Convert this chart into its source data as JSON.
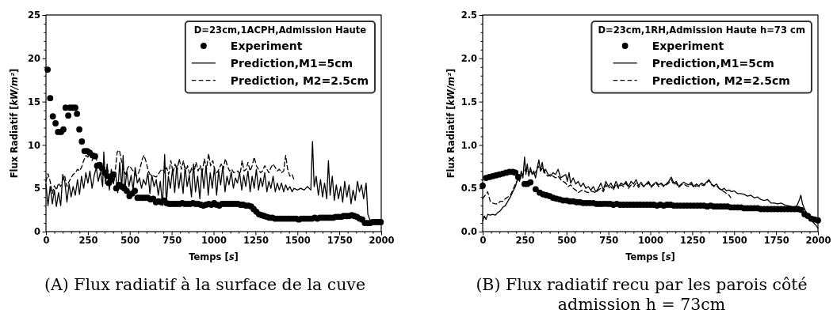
{
  "chart_data": [
    {
      "type": "line",
      "xlabel": "Temps [s]",
      "ylabel": "Flux Radiatif [kW/m²]",
      "legend_title": "D=23cm,1ACPH,Admission Haute",
      "legend": "top right",
      "xlim": [
        0,
        2000
      ],
      "ylim": [
        0,
        25
      ],
      "xticks": [
        0,
        {
          "value": 50,
          "label": null
        },
        {
          "value": 100,
          "label": null
        },
        {
          "value": 150,
          "label": null
        },
        {
          "value": 200,
          "label": null
        },
        250,
        {
          "value": 300,
          "label": null
        },
        {
          "value": 350,
          "label": null
        },
        {
          "value": 400,
          "label": null
        },
        {
          "value": 450,
          "label": null
        },
        500,
        {
          "value": 550,
          "label": null
        },
        {
          "value": 600,
          "label": null
        },
        {
          "value": 650,
          "label": null
        },
        {
          "value": 700,
          "label": null
        },
        750,
        {
          "value": 800,
          "label": null
        },
        {
          "value": 850,
          "label": null
        },
        {
          "value": 900,
          "label": null
        },
        {
          "value": 950,
          "label": null
        },
        1000,
        {
          "value": 1050,
          "label": null
        },
        {
          "value": 1100,
          "label": null
        },
        {
          "value": 1150,
          "label": null
        },
        {
          "value": 1200,
          "label": null
        },
        1250,
        {
          "value": 1300,
          "label": null
        },
        {
          "value": 1350,
          "label": null
        },
        {
          "value": 1400,
          "label": null
        },
        {
          "value": 1450,
          "label": null
        },
        1500,
        {
          "value": 1550,
          "label": null
        },
        {
          "value": 1600,
          "label": null
        },
        {
          "value": 1650,
          "label": null
        },
        {
          "value": 1700,
          "label": null
        },
        1750,
        {
          "value": 1800,
          "label": null
        },
        {
          "value": 1850,
          "label": null
        },
        {
          "value": 1900,
          "label": null
        },
        {
          "value": 1950,
          "label": null
        },
        2000
      ],
      "yticks": [
        0,
        {
          "value": 1,
          "label": null
        },
        {
          "value": 2,
          "label": null
        },
        {
          "value": 3,
          "label": null
        },
        {
          "value": 4,
          "label": null
        },
        5,
        {
          "value": 6,
          "label": null
        },
        {
          "value": 7,
          "label": null
        },
        {
          "value": 8,
          "label": null
        },
        {
          "value": 9,
          "label": null
        },
        10,
        {
          "value": 11,
          "label": null
        },
        {
          "value": 12,
          "label": null
        },
        {
          "value": 13,
          "label": null
        },
        {
          "value": 14,
          "label": null
        },
        15,
        {
          "value": 16,
          "label": null
        },
        {
          "value": 17,
          "label": null
        },
        {
          "value": 18,
          "label": null
        },
        {
          "value": 19,
          "label": null
        },
        20,
        {
          "value": 21,
          "label": null
        },
        {
          "value": 22,
          "label": null
        },
        {
          "value": 23,
          "label": null
        },
        {
          "value": 24,
          "label": null
        },
        25
      ],
      "annotations": [
        "(A) Flux radiatif à la surface de la cuve"
      ],
      "series": [
        {
          "name": "Experiment",
          "type": "scatter",
          "marker": "circle",
          "color": "#000000",
          "x": [
            10,
            25,
            41,
            57,
            72,
            90,
            104,
            117,
            133,
            143,
            159,
            175,
            185,
            199,
            214,
            230,
            246,
            261,
            278,
            293,
            305,
            320,
            335,
            350,
            365,
            375,
            390,
            403,
            419,
            435,
            451,
            467,
            482,
            498,
            514,
            530,
            546,
            561,
            577,
            593,
            608,
            624,
            640,
            656,
            672,
            688,
            703,
            719,
            735,
            750,
            766,
            782,
            798,
            813,
            829,
            845,
            861,
            877,
            892,
            908,
            924,
            940,
            955,
            971,
            987,
            1003,
            1018,
            1034,
            1050,
            1066,
            1082,
            1097,
            1113,
            1129,
            1145,
            1161,
            1176,
            1192,
            1208,
            1224,
            1239,
            1255,
            1271,
            1287,
            1302,
            1318,
            1334,
            1350,
            1366,
            1381,
            1397,
            1413,
            1429,
            1445,
            1460,
            1476,
            1492,
            1508,
            1524,
            1540,
            1555,
            1571,
            1587,
            1603,
            1619,
            1634,
            1650,
            1666,
            1682,
            1697,
            1713,
            1729,
            1745,
            1761,
            1776,
            1792,
            1808,
            1824,
            1839,
            1855,
            1871,
            1887,
            1902,
            1918,
            1934,
            1950,
            1966,
            1981,
            1997
          ],
          "values": [
            18.7,
            15.4,
            13.3,
            12.5,
            11.5,
            11.5,
            11.8,
            14.3,
            13.4,
            14.3,
            14.3,
            14.3,
            13.6,
            11.8,
            10.4,
            9.3,
            9.3,
            9.1,
            8.8,
            8.7,
            7.6,
            7.7,
            7.3,
            6.8,
            6.4,
            5.6,
            6.0,
            6.6,
            5.0,
            5.4,
            5.2,
            5.0,
            4.7,
            4.1,
            4.4,
            4.7,
            3.9,
            3.9,
            3.9,
            3.9,
            3.9,
            3.7,
            3.8,
            3.4,
            3.5,
            3.4,
            3.6,
            3.3,
            3.2,
            3.2,
            3.2,
            3.2,
            3.2,
            3.3,
            3.2,
            3.2,
            3.2,
            3.3,
            3.2,
            3.2,
            3.1,
            3.0,
            3.1,
            3.2,
            3.1,
            3.3,
            3.1,
            3.0,
            3.2,
            3.2,
            3.2,
            3.2,
            3.2,
            3.2,
            3.2,
            3.1,
            3.1,
            3.0,
            3.0,
            2.9,
            2.6,
            2.3,
            2.0,
            1.9,
            1.8,
            1.7,
            1.6,
            1.6,
            1.5,
            1.5,
            1.5,
            1.5,
            1.5,
            1.5,
            1.5,
            1.5,
            1.5,
            1.4,
            1.5,
            1.5,
            1.5,
            1.5,
            1.5,
            1.6,
            1.5,
            1.6,
            1.6,
            1.6,
            1.6,
            1.6,
            1.6,
            1.7,
            1.7,
            1.7,
            1.8,
            1.8,
            1.8,
            1.9,
            1.8,
            1.7,
            1.5,
            1.4,
            1.0,
            1.0,
            1.0,
            1.1,
            1.1,
            1.1,
            1.1
          ]
        },
        {
          "name": "Prediction,M1=5cm",
          "line_style": "solid",
          "color": "#000000",
          "x": [
            0,
            12,
            25,
            38,
            50,
            62,
            75,
            88,
            100,
            112,
            125,
            138,
            150,
            162,
            175,
            188,
            200,
            212,
            225,
            238,
            250,
            262,
            275,
            288,
            300,
            312,
            325,
            338,
            345,
            355,
            365,
            378,
            390,
            402,
            415,
            428,
            440,
            452,
            460,
            470,
            482,
            495,
            508,
            520,
            532,
            545,
            558,
            570,
            582,
            595,
            608,
            620,
            632,
            645,
            658,
            670,
            682,
            695,
            708,
            718,
            730,
            742,
            755,
            768,
            780,
            792,
            805,
            818,
            830,
            842,
            855,
            868,
            880,
            892,
            905,
            918,
            930,
            942,
            955,
            968,
            980,
            992,
            1005,
            1018,
            1030,
            1042,
            1055,
            1068,
            1080,
            1092,
            1105,
            1118,
            1130,
            1142,
            1155,
            1168,
            1180,
            1192,
            1205,
            1218,
            1230,
            1242,
            1255,
            1268,
            1280,
            1292,
            1305,
            1318,
            1330,
            1342,
            1355,
            1368,
            1380,
            1392,
            1405,
            1418,
            1430,
            1442,
            1455,
            1468,
            1480,
            1500,
            1520,
            1540,
            1560,
            1580,
            1590,
            1600,
            1612,
            1625,
            1638,
            1650,
            1662,
            1675,
            1685,
            1695,
            1708,
            1720,
            1732,
            1745,
            1758,
            1770,
            1782,
            1795,
            1808,
            1820,
            1832,
            1845,
            1858,
            1870,
            1882,
            1895,
            1910,
            1920,
            1932,
            1945
          ],
          "values": [
            5.5,
            3.0,
            5.2,
            3.2,
            4.8,
            2.9,
            4.5,
            3.0,
            6.6,
            5.8,
            3.4,
            5.5,
            4.0,
            5.2,
            4.2,
            6.0,
            4.3,
            6.4,
            5.0,
            6.8,
            5.6,
            7.0,
            5.0,
            6.5,
            7.4,
            5.8,
            6.9,
            5.2,
            9.2,
            5.5,
            7.8,
            4.8,
            7.2,
            5.5,
            6.8,
            4.5,
            8.0,
            5.0,
            8.8,
            4.6,
            7.0,
            5.2,
            6.5,
            4.8,
            7.4,
            5.6,
            6.2,
            5.0,
            6.0,
            5.4,
            6.8,
            4.4,
            6.5,
            5.2,
            6.0,
            4.2,
            5.8,
            3.0,
            8.9,
            3.2,
            6.4,
            5.0,
            7.2,
            4.5,
            7.6,
            5.0,
            6.8,
            4.4,
            7.5,
            5.2,
            6.5,
            4.0,
            7.8,
            4.6,
            6.4,
            3.8,
            7.2,
            5.0,
            7.6,
            4.2,
            6.8,
            5.0,
            7.4,
            4.2,
            7.0,
            5.4,
            7.6,
            4.6,
            6.4,
            5.4,
            6.9,
            5.0,
            6.2,
            5.6,
            6.8,
            4.8,
            6.5,
            5.2,
            7.0,
            4.6,
            6.4,
            5.0,
            7.2,
            4.8,
            6.2,
            5.2,
            6.8,
            4.6,
            5.8,
            5.0,
            6.4,
            4.6,
            5.6,
            4.8,
            5.6,
            4.6,
            5.4,
            4.8,
            5.2,
            4.6,
            5.0,
            4.8,
            5.0,
            4.8,
            5.2,
            4.8,
            10.4,
            5.2,
            6.4,
            4.2,
            6.0,
            4.0,
            5.6,
            3.8,
            8.2,
            4.2,
            6.4,
            3.6,
            5.4,
            3.8,
            5.2,
            3.4,
            5.8,
            4.0,
            5.4,
            3.2,
            4.8,
            3.6,
            5.8,
            4.6,
            5.4,
            3.8,
            5.6,
            2.0,
            1.4,
            1.0
          ]
        },
        {
          "name": "Prediction, M2=2.5cm",
          "line_style": "dashed",
          "color": "#000000",
          "x": [
            0,
            12,
            25,
            38,
            50,
            62,
            75,
            88,
            100,
            112,
            125,
            138,
            150,
            162,
            175,
            188,
            200,
            212,
            225,
            238,
            250,
            262,
            275,
            288,
            300,
            312,
            325,
            338,
            350,
            362,
            375,
            388,
            400,
            412,
            425,
            438,
            450,
            462,
            475,
            488,
            500,
            512,
            525,
            538,
            550,
            562,
            575,
            585,
            595,
            608,
            620,
            632,
            645,
            658,
            670,
            682,
            695,
            708,
            720,
            732,
            745,
            758,
            770,
            782,
            795,
            808,
            820,
            832,
            845,
            858,
            870,
            882,
            895,
            908,
            920,
            932,
            945,
            958,
            970,
            982,
            995,
            1008,
            1020,
            1032,
            1045,
            1058,
            1070,
            1082,
            1095,
            1108,
            1120,
            1132,
            1145,
            1158,
            1170,
            1182,
            1195,
            1205,
            1218,
            1230,
            1242,
            1255,
            1268,
            1280,
            1292,
            1305,
            1318,
            1330,
            1342,
            1355,
            1368,
            1380,
            1392,
            1405,
            1418,
            1430,
            1442,
            1455,
            1468,
            1480
          ],
          "values": [
            5.8,
            6.7,
            5.8,
            4.4,
            5.3,
            4.8,
            5.6,
            5.2,
            6.0,
            6.4,
            5.2,
            5.8,
            6.2,
            6.6,
            6.8,
            7.2,
            7.0,
            7.4,
            8.2,
            8.8,
            8.6,
            9.0,
            8.2,
            8.8,
            8.4,
            7.6,
            7.8,
            7.0,
            6.8,
            7.4,
            6.8,
            6.5,
            6.2,
            6.8,
            9.2,
            9.4,
            8.2,
            7.2,
            6.6,
            7.4,
            7.6,
            7.2,
            6.9,
            6.4,
            6.6,
            7.4,
            8.4,
            8.8,
            8.2,
            7.2,
            6.6,
            6.5,
            6.4,
            6.3,
            6.6,
            7.0,
            7.2,
            6.8,
            7.4,
            6.6,
            8.2,
            6.8,
            7.8,
            7.0,
            8.4,
            7.2,
            8.2,
            6.8,
            7.6,
            6.6,
            7.4,
            6.8,
            8.0,
            7.0,
            7.6,
            6.8,
            8.4,
            7.2,
            9.0,
            7.6,
            8.2,
            7.0,
            6.8,
            7.2,
            7.8,
            7.2,
            8.4,
            7.6,
            7.0,
            7.2,
            6.8,
            6.9,
            7.0,
            6.6,
            8.2,
            7.0,
            7.2,
            8.0,
            7.0,
            7.6,
            8.6,
            7.6,
            7.2,
            6.8,
            7.0,
            7.6,
            7.2,
            6.8,
            7.4,
            7.8,
            7.4,
            7.0,
            7.2,
            6.8,
            7.0,
            8.8,
            7.2,
            6.4,
            6.6,
            6.0
          ]
        }
      ]
    },
    {
      "type": "line",
      "xlabel": "Temps [s]",
      "ylabel": "Flux Radiatif [kW/m²]",
      "legend_title": "D=23cm,1RH,Admission Haute h=73 cm",
      "legend": "top right",
      "xlim": [
        0,
        2000
      ],
      "ylim": [
        0,
        2.5
      ],
      "xticks": [
        0,
        {
          "value": 50,
          "label": null
        },
        {
          "value": 100,
          "label": null
        },
        {
          "value": 150,
          "label": null
        },
        {
          "value": 200,
          "label": null
        },
        250,
        {
          "value": 300,
          "label": null
        },
        {
          "value": 350,
          "label": null
        },
        {
          "value": 400,
          "label": null
        },
        {
          "value": 450,
          "label": null
        },
        500,
        {
          "value": 550,
          "label": null
        },
        {
          "value": 600,
          "label": null
        },
        {
          "value": 650,
          "label": null
        },
        {
          "value": 700,
          "label": null
        },
        750,
        {
          "value": 800,
          "label": null
        },
        {
          "value": 850,
          "label": null
        },
        {
          "value": 900,
          "label": null
        },
        {
          "value": 950,
          "label": null
        },
        1000,
        {
          "value": 1050,
          "label": null
        },
        {
          "value": 1100,
          "label": null
        },
        {
          "value": 1150,
          "label": null
        },
        {
          "value": 1200,
          "label": null
        },
        1250,
        {
          "value": 1300,
          "label": null
        },
        {
          "value": 1350,
          "label": null
        },
        {
          "value": 1400,
          "label": null
        },
        {
          "value": 1450,
          "label": null
        },
        1500,
        {
          "value": 1550,
          "label": null
        },
        {
          "value": 1600,
          "label": null
        },
        {
          "value": 1650,
          "label": null
        },
        {
          "value": 1700,
          "label": null
        },
        1750,
        {
          "value": 1800,
          "label": null
        },
        {
          "value": 1850,
          "label": null
        },
        {
          "value": 1900,
          "label": null
        },
        {
          "value": 1950,
          "label": null
        },
        2000
      ],
      "yticks": [
        {
          "value": 0,
          "label": "0.0"
        },
        {
          "value": 0.1,
          "label": null
        },
        {
          "value": 0.2,
          "label": null
        },
        {
          "value": 0.3,
          "label": null
        },
        {
          "value": 0.4,
          "label": null
        },
        0.5,
        {
          "value": 0.6,
          "label": null
        },
        {
          "value": 0.7,
          "label": null
        },
        {
          "value": 0.8,
          "label": null
        },
        {
          "value": 0.9,
          "label": null
        },
        {
          "value": 1,
          "label": "1.0"
        },
        {
          "value": 1.1,
          "label": null
        },
        {
          "value": 1.2,
          "label": null
        },
        {
          "value": 1.3,
          "label": null
        },
        {
          "value": 1.4,
          "label": null
        },
        1.5,
        {
          "value": 1.6,
          "label": null
        },
        {
          "value": 1.7,
          "label": null
        },
        {
          "value": 1.8,
          "label": null
        },
        {
          "value": 1.9,
          "label": null
        },
        {
          "value": 2,
          "label": "2.0"
        },
        {
          "value": 2.1,
          "label": null
        },
        {
          "value": 2.2,
          "label": null
        },
        {
          "value": 2.3,
          "label": null
        },
        {
          "value": 2.4,
          "label": null
        },
        2.5
      ],
      "annotations": [
        "(B) Flux radiatif recu par les parois côté admission h = 73cm"
      ],
      "series": [
        {
          "name": "Experiment",
          "type": "scatter",
          "marker": "circle",
          "color": "#000000",
          "x": [
            0,
            20,
            40,
            60,
            80,
            100,
            120,
            140,
            160,
            180,
            195,
            212,
            250,
            266,
            285,
            316,
            340,
            360,
            380,
            400,
            420,
            440,
            460,
            480,
            500,
            520,
            540,
            560,
            580,
            600,
            620,
            640,
            660,
            680,
            700,
            720,
            740,
            760,
            780,
            800,
            820,
            840,
            860,
            880,
            900,
            920,
            940,
            960,
            980,
            1000,
            1020,
            1040,
            1060,
            1080,
            1100,
            1120,
            1140,
            1160,
            1180,
            1200,
            1220,
            1240,
            1260,
            1280,
            1300,
            1320,
            1340,
            1360,
            1380,
            1400,
            1420,
            1440,
            1460,
            1480,
            1500,
            1520,
            1540,
            1560,
            1580,
            1600,
            1620,
            1640,
            1660,
            1680,
            1700,
            1720,
            1740,
            1760,
            1780,
            1800,
            1820,
            1840,
            1860,
            1880,
            1900,
            1920,
            1940,
            1960,
            1980,
            2000
          ],
          "values": [
            0.53,
            0.62,
            0.63,
            0.64,
            0.65,
            0.66,
            0.67,
            0.68,
            0.69,
            0.69,
            0.68,
            0.63,
            0.55,
            0.55,
            0.57,
            0.49,
            0.45,
            0.43,
            0.42,
            0.41,
            0.39,
            0.38,
            0.37,
            0.36,
            0.36,
            0.35,
            0.35,
            0.34,
            0.34,
            0.33,
            0.33,
            0.33,
            0.33,
            0.32,
            0.32,
            0.32,
            0.32,
            0.32,
            0.31,
            0.32,
            0.31,
            0.31,
            0.31,
            0.31,
            0.31,
            0.31,
            0.31,
            0.31,
            0.31,
            0.31,
            0.31,
            0.3,
            0.31,
            0.3,
            0.31,
            0.31,
            0.3,
            0.3,
            0.3,
            0.3,
            0.3,
            0.3,
            0.3,
            0.3,
            0.3,
            0.3,
            0.29,
            0.3,
            0.29,
            0.29,
            0.29,
            0.29,
            0.29,
            0.28,
            0.28,
            0.28,
            0.28,
            0.27,
            0.27,
            0.27,
            0.27,
            0.27,
            0.26,
            0.26,
            0.26,
            0.26,
            0.26,
            0.26,
            0.26,
            0.26,
            0.26,
            0.26,
            0.26,
            0.26,
            0.25,
            0.2,
            0.18,
            0.15,
            0.14,
            0.13
          ]
        },
        {
          "name": "Prediction,M1=5cm",
          "line_style": "solid",
          "color": "#000000",
          "x": [
            0,
            10,
            20,
            30,
            45,
            60,
            75,
            90,
            105,
            120,
            135,
            150,
            165,
            180,
            195,
            210,
            220,
            230,
            240,
            250,
            258,
            266,
            275,
            285,
            295,
            305,
            315,
            325,
            335,
            345,
            355,
            365,
            375,
            390,
            405,
            420,
            435,
            450,
            465,
            480,
            495,
            505,
            515,
            525,
            540,
            555,
            570,
            585,
            600,
            615,
            630,
            645,
            660,
            675,
            690,
            705,
            720,
            735,
            750,
            765,
            780,
            795,
            810,
            825,
            840,
            855,
            870,
            885,
            900,
            915,
            930,
            945,
            960,
            975,
            990,
            1005,
            1020,
            1035,
            1050,
            1065,
            1080,
            1095,
            1110,
            1125,
            1140,
            1155,
            1170,
            1185,
            1200,
            1215,
            1230,
            1245,
            1260,
            1275,
            1290,
            1305,
            1320,
            1335,
            1350,
            1365,
            1380,
            1395,
            1410,
            1425,
            1440,
            1455,
            1470,
            1485,
            1500,
            1520,
            1540,
            1560,
            1580,
            1600,
            1620,
            1640,
            1660,
            1680,
            1700,
            1720,
            1740,
            1760,
            1780,
            1800,
            1820,
            1840,
            1860,
            1875,
            1890,
            1898,
            1908,
            1925,
            1945,
            1965,
            1985,
            2000
          ],
          "values": [
            0.12,
            0.18,
            0.14,
            0.2,
            0.19,
            0.2,
            0.19,
            0.22,
            0.24,
            0.28,
            0.3,
            0.35,
            0.4,
            0.46,
            0.52,
            0.62,
            0.58,
            0.7,
            0.62,
            0.86,
            0.66,
            0.78,
            0.64,
            0.74,
            0.66,
            0.7,
            0.62,
            0.72,
            0.83,
            0.7,
            0.8,
            0.68,
            0.72,
            0.66,
            0.64,
            0.68,
            0.66,
            0.72,
            0.62,
            0.64,
            0.66,
            0.58,
            0.68,
            0.56,
            0.62,
            0.55,
            0.58,
            0.52,
            0.56,
            0.5,
            0.52,
            0.48,
            0.52,
            0.46,
            0.5,
            0.56,
            0.48,
            0.58,
            0.52,
            0.56,
            0.5,
            0.58,
            0.52,
            0.56,
            0.54,
            0.58,
            0.52,
            0.58,
            0.55,
            0.6,
            0.53,
            0.57,
            0.52,
            0.55,
            0.58,
            0.52,
            0.55,
            0.57,
            0.54,
            0.56,
            0.53,
            0.55,
            0.58,
            0.63,
            0.56,
            0.58,
            0.52,
            0.55,
            0.57,
            0.55,
            0.54,
            0.57,
            0.52,
            0.55,
            0.53,
            0.56,
            0.54,
            0.57,
            0.6,
            0.55,
            0.53,
            0.55,
            0.5,
            0.48,
            0.5,
            0.47,
            0.48,
            0.46,
            0.47,
            0.44,
            0.44,
            0.43,
            0.41,
            0.42,
            0.39,
            0.4,
            0.37,
            0.36,
            0.37,
            0.33,
            0.33,
            0.32,
            0.33,
            0.31,
            0.3,
            0.29,
            0.28,
            0.3,
            0.37,
            0.42,
            0.32,
            0.24,
            0.18,
            0.12,
            0.08,
            0.04
          ]
        },
        {
          "name": "Prediction, M2=2.5cm",
          "line_style": "dashed",
          "color": "#000000",
          "x": [
            0,
            15,
            30,
            45,
            60,
            75,
            90,
            105,
            120,
            135,
            150,
            165,
            180,
            195,
            210,
            225,
            240,
            255,
            270,
            285,
            300,
            315,
            330,
            345,
            360,
            375,
            390,
            405,
            420,
            435,
            450,
            465,
            480,
            495,
            510,
            525,
            540,
            555,
            570,
            585,
            600,
            615,
            630,
            645,
            660,
            675,
            690,
            705,
            720,
            735,
            750,
            765,
            780,
            795,
            810,
            825,
            840,
            855,
            870,
            885,
            900,
            915,
            930,
            945,
            960,
            975,
            990,
            1005,
            1020,
            1035,
            1050,
            1065,
            1080,
            1095,
            1110,
            1125,
            1140,
            1155,
            1170,
            1185,
            1200,
            1215,
            1230,
            1245,
            1260,
            1275,
            1290,
            1305,
            1320,
            1335,
            1350,
            1365,
            1380,
            1395,
            1410,
            1425,
            1440,
            1455,
            1470,
            1480
          ],
          "values": [
            0.38,
            0.42,
            0.46,
            0.35,
            0.33,
            0.32,
            0.32,
            0.35,
            0.35,
            0.38,
            0.4,
            0.42,
            0.48,
            0.55,
            0.6,
            0.64,
            0.66,
            0.72,
            0.68,
            0.7,
            0.66,
            0.68,
            0.76,
            0.7,
            0.74,
            0.66,
            0.64,
            0.66,
            0.64,
            0.62,
            0.64,
            0.6,
            0.58,
            0.56,
            0.52,
            0.54,
            0.5,
            0.48,
            0.45,
            0.47,
            0.48,
            0.46,
            0.45,
            0.47,
            0.46,
            0.45,
            0.48,
            0.5,
            0.46,
            0.54,
            0.5,
            0.52,
            0.48,
            0.55,
            0.5,
            0.54,
            0.52,
            0.56,
            0.5,
            0.54,
            0.52,
            0.56,
            0.51,
            0.55,
            0.52,
            0.54,
            0.56,
            0.51,
            0.54,
            0.56,
            0.52,
            0.55,
            0.52,
            0.54,
            0.56,
            0.6,
            0.54,
            0.56,
            0.51,
            0.54,
            0.55,
            0.53,
            0.52,
            0.55,
            0.51,
            0.53,
            0.52,
            0.54,
            0.53,
            0.56,
            0.59,
            0.54,
            0.52,
            0.53,
            0.5,
            0.48,
            0.46,
            0.44,
            0.42,
            0.39
          ]
        }
      ]
    }
  ]
}
